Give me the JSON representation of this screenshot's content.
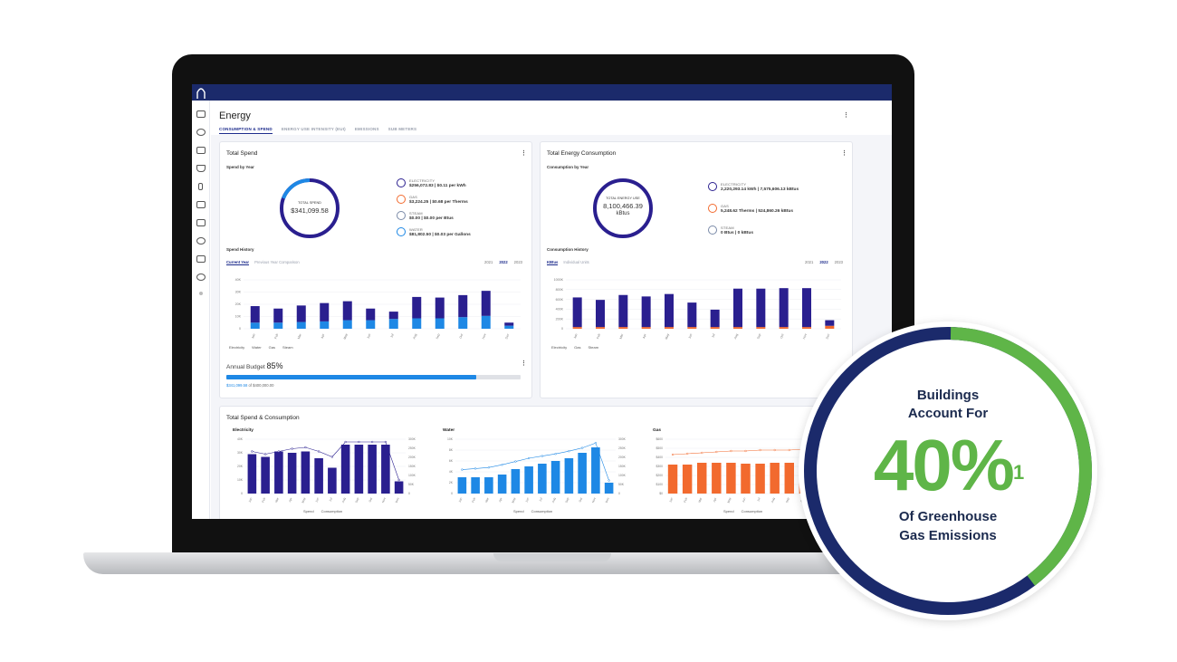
{
  "app": {
    "page_title": "Energy",
    "tabs": [
      {
        "label": "CONSUMPTION & SPEND",
        "active": true
      },
      {
        "label": "ENERGY USE INTENSITY (EUI)",
        "active": false
      },
      {
        "label": "EMISSIONS",
        "active": false
      },
      {
        "label": "SUB METERS",
        "active": false
      }
    ],
    "menu_glyph": "⋮",
    "colors": {
      "navy": "#1b2a6b",
      "dark_bar": "#2a1f8f",
      "light_bar": "#1e88e5",
      "orange": "#f26a2e",
      "green": "#5fb548"
    }
  },
  "total_spend": {
    "title": "Total Spend",
    "subtitle": "Spend by Year",
    "ring_label": "TOTAL SPEND",
    "ring_value": "$341,099.58",
    "items": [
      {
        "name": "ELECTRICITY",
        "value": "$256,072.83 | $0.11 per kWh",
        "icon": "electricity-icon"
      },
      {
        "name": "GAS",
        "value": "$3,224.25 | $0.68 per Therms",
        "icon": "gas-icon"
      },
      {
        "name": "STEAM",
        "value": "$0.00 | $0.00 per Btus",
        "icon": "steam-icon"
      },
      {
        "name": "WATER",
        "value": "$81,802.50 | $0.03 per Gallons",
        "icon": "water-icon"
      }
    ],
    "history_title": "Spend History",
    "history_tabs": [
      "Current Year",
      "Previous Year Comparison"
    ],
    "years": [
      "2021",
      "2022",
      "2023"
    ],
    "selected_year": "2022",
    "legend": [
      "Electricity",
      "Water",
      "Gas",
      "Steam"
    ],
    "budget_label": "Annual Budget",
    "budget_pct": "85%",
    "budget_fraction": 0.85,
    "budget_spent": "$341,099.58",
    "budget_of": "of $400,000.00"
  },
  "total_energy": {
    "title": "Total Energy Consumption",
    "subtitle": "Consumption by Year",
    "ring_label": "TOTAL ENERGY USE",
    "ring_value": "8,100,466.39",
    "ring_unit": "kBtus",
    "items": [
      {
        "name": "ELECTRICITY",
        "value": "2,220,293.14 kWh | 7,575,606.13 kBtus",
        "icon": "electricity-icon"
      },
      {
        "name": "GAS",
        "value": "5,248.62 Therms | 524,860.26 kBtus",
        "icon": "gas-icon"
      },
      {
        "name": "STEAM",
        "value": "0 Btus | 0 kBtus",
        "icon": "steam-icon"
      }
    ],
    "history_title": "Consumption History",
    "history_tabs": [
      "KBtus",
      "Individual Units"
    ],
    "years": [
      "2021",
      "2022",
      "2023"
    ],
    "selected_year": "2022",
    "legend": [
      "Electricity",
      "Gas",
      "Steam"
    ]
  },
  "spend_consumption": {
    "title": "Total Spend & Consumption",
    "charts": [
      {
        "name": "Electricity"
      },
      {
        "name": "Water"
      },
      {
        "name": "Gas"
      }
    ],
    "legend": [
      "Spend",
      "Consumption"
    ]
  },
  "months": [
    "Jan",
    "Feb",
    "Mar",
    "Apr",
    "May",
    "Jun",
    "Jul",
    "Aug",
    "Sep",
    "Oct",
    "Nov",
    "Dec"
  ],
  "chart_data": [
    {
      "type": "bar",
      "id": "spend-history",
      "categories": [
        "Jan",
        "Feb",
        "Mar",
        "Apr",
        "May",
        "Jun",
        "Jul",
        "Aug",
        "Sep",
        "Oct",
        "Nov",
        "Dec"
      ],
      "ylim": [
        0,
        40
      ],
      "yticks": [
        "40K",
        "30K",
        "20K",
        "10K",
        "0"
      ],
      "series": [
        {
          "name": "Electricity",
          "values": [
            18.5,
            16.5,
            19,
            21,
            22.5,
            16.5,
            14,
            26,
            25.5,
            27.5,
            31,
            5
          ]
        },
        {
          "name": "Water",
          "values": [
            5,
            5,
            5.5,
            6,
            7,
            7,
            8,
            8.5,
            8.5,
            9.5,
            10.5,
            2.5
          ]
        }
      ]
    },
    {
      "type": "bar",
      "id": "consumption-history",
      "categories": [
        "Jan",
        "Feb",
        "Mar",
        "Apr",
        "May",
        "Jun",
        "Jul",
        "Aug",
        "Sep",
        "Oct",
        "Nov",
        "Dec"
      ],
      "ylim": [
        0,
        1000
      ],
      "yticks": [
        "1000K",
        "800K",
        "600K",
        "400K",
        "200K",
        "0"
      ],
      "series": [
        {
          "name": "Electricity",
          "values": [
            640,
            590,
            690,
            660,
            710,
            535,
            390,
            820,
            820,
            830,
            830,
            175
          ]
        },
        {
          "name": "Gas",
          "values": [
            35,
            35,
            35,
            35,
            35,
            35,
            35,
            35,
            35,
            35,
            35,
            60
          ]
        }
      ]
    },
    {
      "type": "bar",
      "id": "electricity-spend-consumption",
      "categories": [
        "Jan",
        "Feb",
        "Mar",
        "Apr",
        "May",
        "Jun",
        "Jul",
        "Aug",
        "Sep",
        "Oct",
        "Nov",
        "Dec"
      ],
      "ylim": [
        0,
        40
      ],
      "yticks": [
        "40K",
        "30K",
        "20K",
        "10K",
        "0"
      ],
      "y2ticks": [
        "300K",
        "250K",
        "200K",
        "150K",
        "100K",
        "50K",
        "0"
      ],
      "series": [
        {
          "name": "Consumption",
          "values": [
            29,
            27,
            31,
            30,
            31,
            26,
            19,
            36,
            36,
            36,
            36,
            9
          ]
        },
        {
          "name": "Spend",
          "values": [
            31,
            29,
            31,
            33,
            34,
            31,
            27,
            38,
            38,
            38,
            38,
            10
          ]
        }
      ]
    },
    {
      "type": "bar",
      "id": "water-spend-consumption",
      "categories": [
        "Jan",
        "Feb",
        "Mar",
        "Apr",
        "May",
        "Jun",
        "Jul",
        "Aug",
        "Sep",
        "Oct",
        "Nov",
        "Dec"
      ],
      "ylim": [
        0,
        10
      ],
      "yticks": [
        "10K",
        "8K",
        "6K",
        "4K",
        "2K",
        "0"
      ],
      "y2ticks": [
        "300K",
        "250K",
        "200K",
        "150K",
        "100K",
        "50K",
        "0"
      ],
      "series": [
        {
          "name": "Consumption",
          "values": [
            3,
            3,
            3,
            3.5,
            4.5,
            5,
            5.5,
            6,
            6.5,
            7.5,
            8.5,
            2
          ]
        },
        {
          "name": "Spend",
          "values": [
            4.4,
            4.6,
            4.8,
            5.3,
            5.9,
            6.5,
            6.9,
            7.3,
            7.8,
            8.4,
            9.3,
            2.4
          ]
        }
      ]
    },
    {
      "type": "bar",
      "id": "gas-spend-consumption",
      "categories": [
        "Jan",
        "Feb",
        "Mar",
        "Apr",
        "May",
        "Jun",
        "Jul",
        "Aug",
        "Sep",
        "Oct",
        "Nov"
      ],
      "ylim": [
        0,
        600
      ],
      "yticks": [
        "$600",
        "$500",
        "$400",
        "$300",
        "$200",
        "$100",
        "$0"
      ],
      "series": [
        {
          "name": "Consumption",
          "values": [
            320,
            320,
            340,
            340,
            340,
            330,
            330,
            340,
            340,
            350,
            350
          ]
        },
        {
          "name": "Spend",
          "values": [
            430,
            440,
            450,
            460,
            470,
            470,
            480,
            480,
            480,
            490,
            490
          ]
        }
      ]
    }
  ],
  "badge": {
    "line1": "Buildings",
    "line2": "Account For",
    "percent": "40%",
    "footnote": "1",
    "line3": "Of Greenhouse",
    "line4": "Gas Emissions",
    "green_fraction": 0.4
  }
}
